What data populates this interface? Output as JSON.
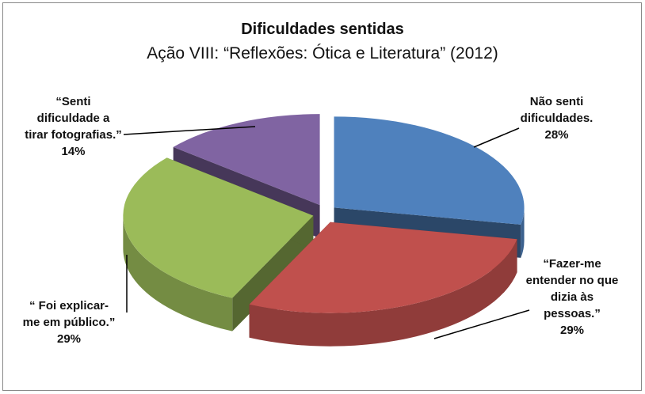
{
  "chart_data": {
    "type": "pie3d",
    "title": "Dificuldades sentidas",
    "subtitle": "Ação  VIII: “Reflexões: Ótica e Literatura” (2012)",
    "categories": [
      "Não senti dificuldades.",
      "“Fazer-me entender no que dizia às pessoas.”",
      "“ Foi explicar-me em público.”",
      "“Senti dificuldade a tirar fotografias.”"
    ],
    "values": [
      28,
      29,
      29,
      14
    ],
    "value_labels": [
      "28%",
      "29%",
      "29%",
      "14%"
    ],
    "colors": [
      "#4f81bd",
      "#c0504d",
      "#9bbb59",
      "#8064a2"
    ]
  }
}
